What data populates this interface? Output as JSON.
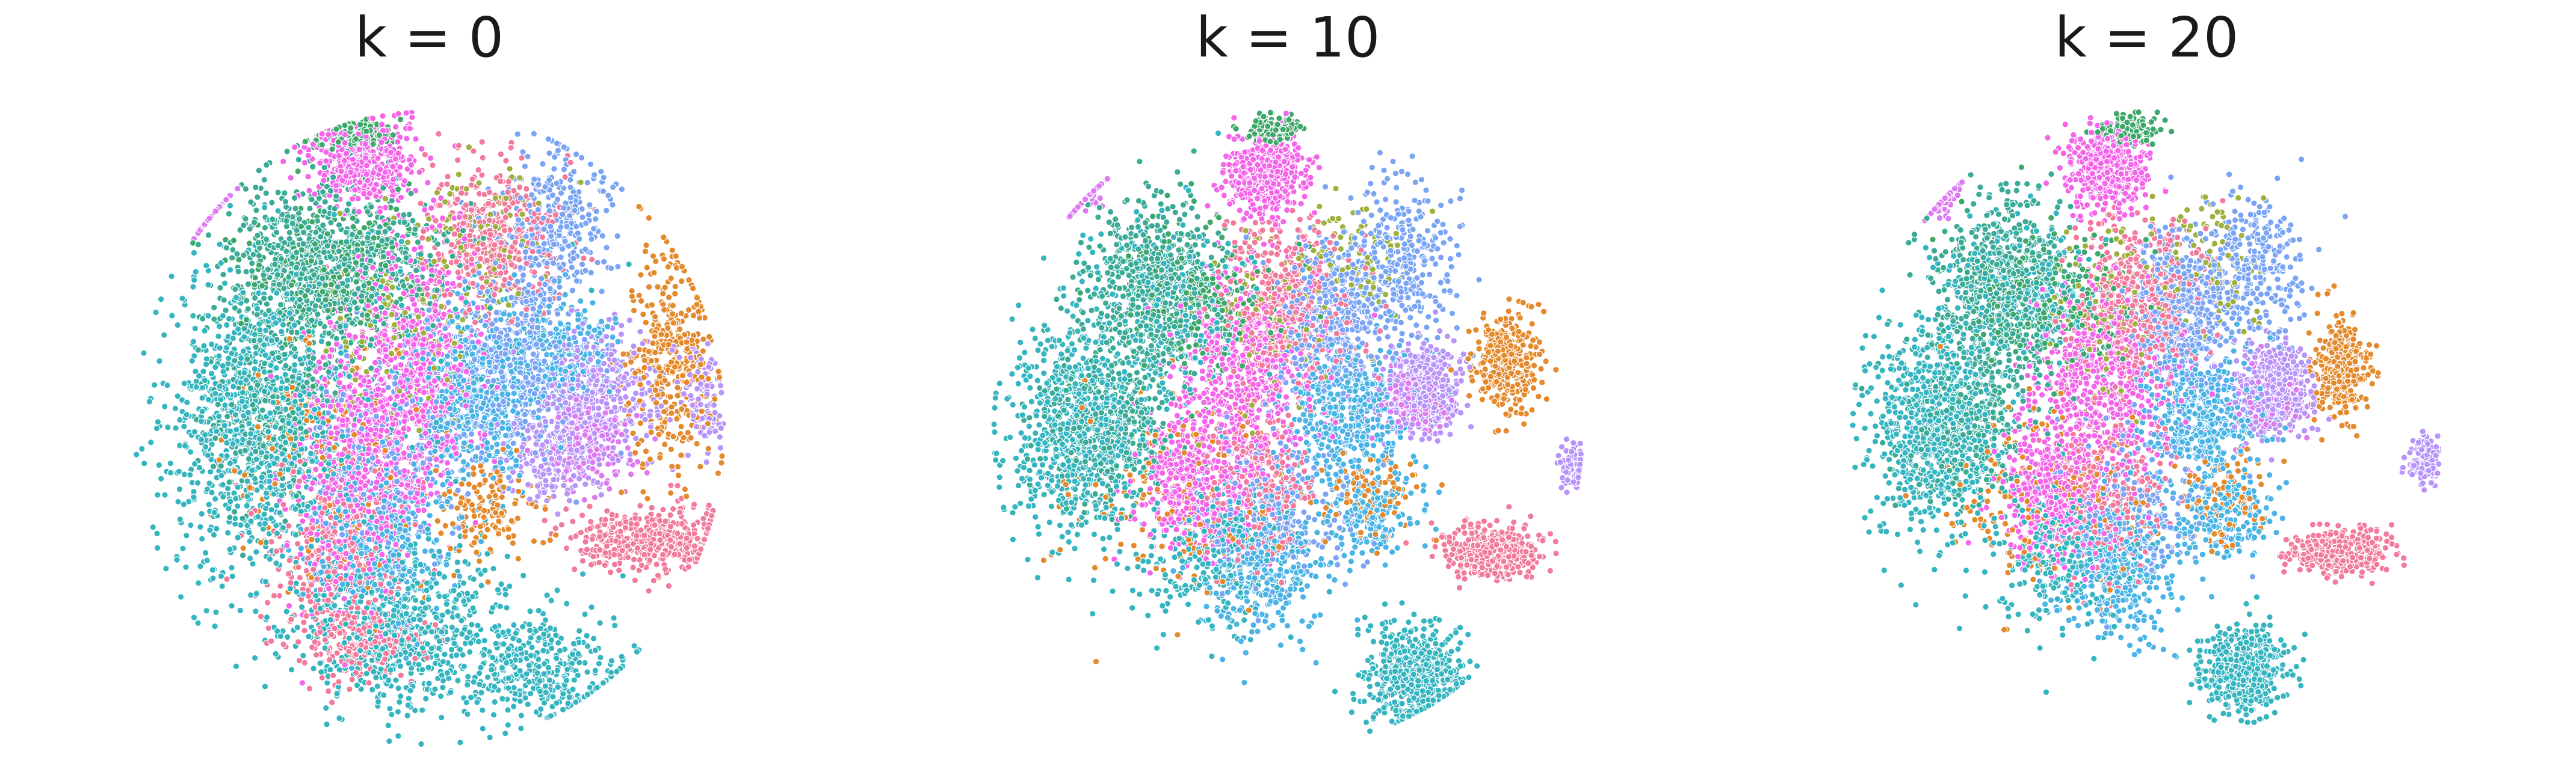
{
  "figure": {
    "background": "#ffffff"
  },
  "chart_data": [
    {
      "type": "scatter",
      "title": "k = 0",
      "xlabel": "",
      "ylabel": "",
      "axes": "off",
      "grid": false,
      "xlim": [
        -100,
        100
      ],
      "ylim": [
        -100,
        100
      ],
      "palette": [
        "#f27a9c",
        "#f565ea",
        "#dd7af2",
        "#b894f9",
        "#7aa5f5",
        "#4ab4e6",
        "#35b5c0",
        "#3aab96",
        "#3ea86a",
        "#9db13c",
        "#e48a2d"
      ],
      "series": [
        {
          "color": "#35b5c0",
          "points": 2200,
          "blobs": [
            [
              -58,
              2,
              26,
              44,
              0.44
            ],
            [
              -8,
              -62,
              34,
              22,
              0.3
            ],
            [
              35,
              -74,
              24,
              16,
              0.16
            ],
            [
              -15,
              10,
              48,
              52,
              0.1
            ]
          ]
        },
        {
          "color": "#3aab96",
          "points": 1300,
          "blobs": [
            [
              -38,
              52,
              24,
              24,
              0.55
            ],
            [
              -52,
              8,
              22,
              30,
              0.3
            ],
            [
              -10,
              50,
              20,
              16,
              0.15
            ]
          ]
        },
        {
          "color": "#f565ea",
          "points": 1800,
          "blobs": [
            [
              -5,
              16,
              20,
              38,
              0.45
            ],
            [
              -26,
              -14,
              20,
              36,
              0.3
            ],
            [
              -22,
              82,
              16,
              12,
              0.25
            ]
          ]
        },
        {
          "color": "#f27a9c",
          "points": 1400,
          "blobs": [
            [
              20,
              58,
              22,
              22,
              0.3
            ],
            [
              74,
              -34,
              24,
              9,
              0.3
            ],
            [
              -30,
              -38,
              22,
              26,
              0.25
            ],
            [
              -22,
              -66,
              16,
              10,
              0.15
            ]
          ]
        },
        {
          "color": "#4ab4e6",
          "points": 1100,
          "blobs": [
            [
              14,
              10,
              20,
              24,
              0.45
            ],
            [
              -18,
              -34,
              22,
              24,
              0.35
            ],
            [
              45,
              25,
              16,
              16,
              0.2
            ]
          ]
        },
        {
          "color": "#7aa5f5",
          "points": 1100,
          "blobs": [
            [
              28,
              20,
              22,
              30,
              0.45
            ],
            [
              42,
              62,
              16,
              22,
              0.3
            ],
            [
              -12,
              -8,
              28,
              30,
              0.25
            ]
          ]
        },
        {
          "color": "#b894f9",
          "points": 700,
          "blobs": [
            [
              56,
              10,
              20,
              20,
              0.6
            ],
            [
              90,
              10,
              7,
              14,
              0.15
            ],
            [
              40,
              -10,
              14,
              12,
              0.25
            ]
          ]
        },
        {
          "color": "#dd7af2",
          "points": 380,
          "blobs": [
            [
              -80,
              74,
              7,
              6,
              0.6
            ],
            [
              52,
              -4,
              14,
              12,
              0.4
            ]
          ]
        },
        {
          "color": "#e48a2d",
          "points": 700,
          "blobs": [
            [
              80,
              20,
              14,
              30,
              0.55
            ],
            [
              -35,
              -10,
              34,
              40,
              0.25
            ],
            [
              20,
              -24,
              16,
              12,
              0.2
            ]
          ]
        },
        {
          "color": "#3ea86a",
          "points": 480,
          "blobs": [
            [
              -25,
              90,
              12,
              4,
              0.4
            ],
            [
              -32,
              48,
              26,
              22,
              0.6
            ]
          ]
        },
        {
          "color": "#9db13c",
          "points": 260,
          "blobs": [
            [
              -8,
              30,
              24,
              30,
              0.6
            ],
            [
              20,
              60,
              18,
              18,
              0.4
            ]
          ]
        }
      ]
    },
    {
      "type": "scatter",
      "title": "k = 10",
      "xlabel": "",
      "ylabel": "",
      "axes": "off",
      "grid": false,
      "xlim": [
        -100,
        100
      ],
      "ylim": [
        -100,
        100
      ],
      "palette": [
        "#f27a9c",
        "#f565ea",
        "#dd7af2",
        "#b894f9",
        "#7aa5f5",
        "#4ab4e6",
        "#35b5c0",
        "#3aab96",
        "#3ea86a",
        "#9db13c",
        "#e48a2d"
      ],
      "series": [
        {
          "color": "#35b5c0",
          "points": 1900,
          "blobs": [
            [
              -68,
              0,
              22,
              30,
              0.4
            ],
            [
              42,
              -76,
              14,
              14,
              0.3
            ],
            [
              -25,
              -40,
              24,
              20,
              0.15
            ],
            [
              -40,
              40,
              24,
              22,
              0.15
            ]
          ]
        },
        {
          "color": "#3aab96",
          "points": 1000,
          "blobs": [
            [
              -46,
              44,
              20,
              24,
              0.6
            ],
            [
              -60,
              0,
              20,
              24,
              0.4
            ]
          ]
        },
        {
          "color": "#f565ea",
          "points": 1500,
          "blobs": [
            [
              -8,
              78,
              12,
              12,
              0.3
            ],
            [
              -14,
              18,
              22,
              26,
              0.4
            ],
            [
              -30,
              -16,
              18,
              20,
              0.3
            ]
          ]
        },
        {
          "color": "#f27a9c",
          "points": 1200,
          "blobs": [
            [
              0,
              38,
              20,
              24,
              0.4
            ],
            [
              68,
              -38,
              14,
              7,
              0.35
            ],
            [
              -10,
              -20,
              16,
              22,
              0.25
            ]
          ]
        },
        {
          "color": "#4ab4e6",
          "points": 1000,
          "blobs": [
            [
              20,
              5,
              18,
              18,
              0.45
            ],
            [
              -8,
              -42,
              20,
              20,
              0.35
            ],
            [
              28,
              -26,
              14,
              12,
              0.2
            ]
          ]
        },
        {
          "color": "#7aa5f5",
          "points": 1000,
          "blobs": [
            [
              14,
              34,
              16,
              22,
              0.45
            ],
            [
              38,
              50,
              16,
              22,
              0.3
            ],
            [
              -2,
              -24,
              24,
              22,
              0.25
            ]
          ]
        },
        {
          "color": "#b894f9",
          "points": 600,
          "blobs": [
            [
              44,
              12,
              12,
              12,
              0.8
            ],
            [
              95,
              -12,
              5,
              7,
              0.2
            ]
          ]
        },
        {
          "color": "#dd7af2",
          "points": 320,
          "blobs": [
            [
              -70,
              74,
              6,
              6,
              0.55
            ],
            [
              40,
              8,
              10,
              10,
              0.45
            ]
          ]
        },
        {
          "color": "#e48a2d",
          "points": 600,
          "blobs": [
            [
              72,
              20,
              10,
              14,
              0.55
            ],
            [
              -35,
              -20,
              30,
              30,
              0.3
            ],
            [
              28,
              -20,
              14,
              12,
              0.15
            ]
          ]
        },
        {
          "color": "#3ea86a",
          "points": 380,
          "blobs": [
            [
              -5,
              92,
              8,
              4,
              0.4
            ],
            [
              -30,
              40,
              26,
              20,
              0.6
            ]
          ]
        },
        {
          "color": "#9db13c",
          "points": 200,
          "blobs": [
            [
              -6,
              34,
              22,
              26,
              0.6
            ],
            [
              22,
              52,
              16,
              16,
              0.4
            ]
          ]
        }
      ]
    },
    {
      "type": "scatter",
      "title": "k = 20",
      "xlabel": "",
      "ylabel": "",
      "axes": "off",
      "grid": false,
      "xlim": [
        -100,
        100
      ],
      "ylim": [
        -100,
        100
      ],
      "palette": [
        "#f27a9c",
        "#f565ea",
        "#dd7af2",
        "#b894f9",
        "#7aa5f5",
        "#4ab4e6",
        "#35b5c0",
        "#3aab96",
        "#3ea86a",
        "#9db13c",
        "#e48a2d"
      ],
      "series": [
        {
          "color": "#35b5c0",
          "points": 1900,
          "blobs": [
            [
              -70,
              0,
              20,
              30,
              0.4
            ],
            [
              32,
              -74,
              12,
              12,
              0.3
            ],
            [
              -28,
              -40,
              24,
              20,
              0.15
            ],
            [
              -40,
              40,
              24,
              22,
              0.15
            ]
          ]
        },
        {
          "color": "#3aab96",
          "points": 1000,
          "blobs": [
            [
              -48,
              44,
              20,
              24,
              0.6
            ],
            [
              -60,
              2,
              20,
              24,
              0.4
            ]
          ]
        },
        {
          "color": "#f565ea",
          "points": 1500,
          "blobs": [
            [
              -14,
              80,
              12,
              12,
              0.3
            ],
            [
              -14,
              16,
              22,
              26,
              0.4
            ],
            [
              -30,
              -18,
              18,
              20,
              0.3
            ]
          ]
        },
        {
          "color": "#f27a9c",
          "points": 1200,
          "blobs": [
            [
              -2,
              40,
              20,
              24,
              0.4
            ],
            [
              64,
              -38,
              14,
              6,
              0.35
            ],
            [
              -12,
              -20,
              16,
              22,
              0.25
            ]
          ]
        },
        {
          "color": "#4ab4e6",
          "points": 1000,
          "blobs": [
            [
              18,
              4,
              18,
              18,
              0.45
            ],
            [
              -10,
              -42,
              20,
              20,
              0.35
            ],
            [
              26,
              -26,
              14,
              12,
              0.2
            ]
          ]
        },
        {
          "color": "#7aa5f5",
          "points": 1000,
          "blobs": [
            [
              12,
              36,
              16,
              22,
              0.45
            ],
            [
              36,
              50,
              16,
              22,
              0.3
            ],
            [
              -4,
              -24,
              24,
              22,
              0.25
            ]
          ]
        },
        {
          "color": "#b894f9",
          "points": 600,
          "blobs": [
            [
              42,
              12,
              12,
              12,
              0.8
            ],
            [
              92,
              -10,
              5,
              7,
              0.2
            ]
          ]
        },
        {
          "color": "#dd7af2",
          "points": 320,
          "blobs": [
            [
              -70,
              72,
              6,
              6,
              0.55
            ],
            [
              40,
              8,
              10,
              10,
              0.45
            ]
          ]
        },
        {
          "color": "#e48a2d",
          "points": 600,
          "blobs": [
            [
              64,
              18,
              8,
              14,
              0.55
            ],
            [
              -35,
              -20,
              30,
              30,
              0.3
            ],
            [
              26,
              -20,
              14,
              12,
              0.15
            ]
          ]
        },
        {
          "color": "#3ea86a",
          "points": 380,
          "blobs": [
            [
              -6,
              92,
              8,
              4,
              0.4
            ],
            [
              -30,
              40,
              26,
              20,
              0.6
            ]
          ]
        },
        {
          "color": "#9db13c",
          "points": 200,
          "blobs": [
            [
              -8,
              34,
              22,
              26,
              0.6
            ],
            [
              20,
              52,
              16,
              16,
              0.4
            ]
          ]
        }
      ]
    }
  ]
}
